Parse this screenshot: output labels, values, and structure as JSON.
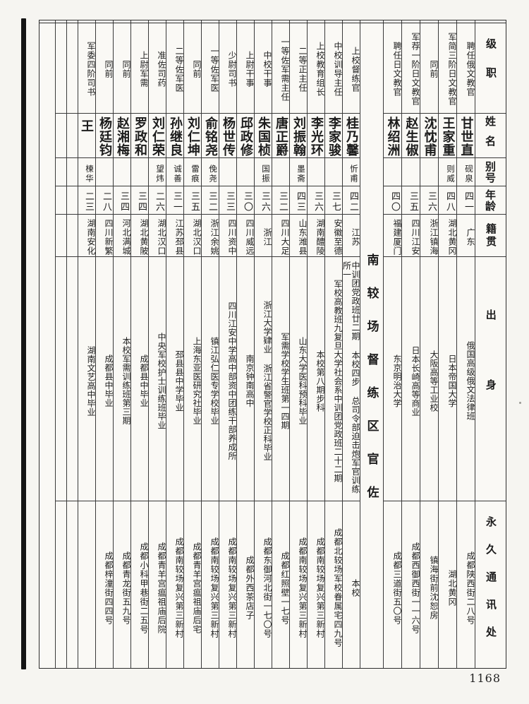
{
  "page": {
    "number": "1168",
    "title": "南较场督练区官佐"
  },
  "headers": {
    "rank": "级职",
    "name": "姓名",
    "hao": "别号",
    "age": "年龄",
    "native": "籍贯",
    "origin": "出身",
    "address": "永久通讯处"
  },
  "right_section": [
    {
      "rank": "聘任俄文教官",
      "name": "甘世直",
      "hao": "砚泉",
      "age": "四一",
      "native": "广东",
      "origin": "俄国高级俄文法律班",
      "address": "成都陕西街二八号"
    },
    {
      "rank": "军简三阶日文教官",
      "name": "王家重",
      "hao": "则威",
      "age": "四八",
      "native": "湖北黄冈",
      "origin": "日本帝国大学",
      "address": "湖北黄冈"
    },
    {
      "rank": "同前",
      "name": "沈忱甫",
      "hao": "",
      "age": "三六",
      "native": "浙江镇海",
      "origin": "大阪高等工业校",
      "address": "镇海街前沈恕房"
    },
    {
      "rank": "军荐一阶日文教官",
      "name": "赵生俶",
      "hao": "",
      "age": "三五",
      "native": "四川江安",
      "origin": "日本长崎高等商业",
      "address": "成都西御西街一一六号"
    },
    {
      "rank": "聘任日文教官",
      "name": "林绍洲",
      "hao": "",
      "age": "四〇",
      "native": "福建厦门",
      "origin": "东京明治大学",
      "address": "成都三道街五〇号"
    }
  ],
  "left_section": [
    {
      "rank": "上校督练官",
      "name": "桂乃馨",
      "hao": "忻甫",
      "age": "四二",
      "native": "江苏",
      "origin": "中训团党政班廿二期 本校四步 总司令部迫击炮军官训练所一",
      "address": "本校"
    },
    {
      "rank": "中校训导主任",
      "name": "李家骏",
      "hao": "",
      "age": "三七",
      "native": "安徽至德",
      "origin": "军校高教班九复旦大学社会系中训团党政班二十二期",
      "address": "成都北较场军校眷属宅四九号"
    },
    {
      "rank": "上校教育组长",
      "name": "李光环",
      "hao": "",
      "age": "三六",
      "native": "湖南醴陵",
      "origin": "本校第八期步科",
      "address": "成都南较场复兴第三新村"
    },
    {
      "rank": "二等正主任",
      "name": "刘振翰",
      "hao": "墨斋",
      "age": "四三",
      "native": "山东潍县",
      "origin": "山东大学医科预科毕业",
      "address": "成都南较场复兴第三新村"
    },
    {
      "rank": "一等佐军需主任",
      "name": "唐正爵",
      "hao": "",
      "age": "三二",
      "native": "四川大足",
      "origin": "军需学校学生班第一四期",
      "address": "成都红照壁一七号"
    },
    {
      "rank": "中校干事",
      "name": "朱国桢",
      "hao": "国振",
      "age": "三六",
      "native": "浙江",
      "origin": "浙江大学肄业 浙江省警官学校正科毕业",
      "address": "成都东御河北街一七〇号"
    },
    {
      "rank": "上尉干事",
      "name": "邱政修",
      "hao": "",
      "age": "三〇",
      "native": "四川威远",
      "origin": "南京钟南高中",
      "address": "成都外西茶店子"
    },
    {
      "rank": "少尉司书",
      "name": "杨世传",
      "hao": "",
      "age": "三三",
      "native": "四川资中",
      "origin": "四川江安中学高中部资中团练干部养成所",
      "address": "成都南较场复兴第三新村"
    },
    {
      "rank": "一等佐军医",
      "name": "俞铭尧",
      "hao": "俛尧",
      "age": "三二",
      "native": "浙江余姚",
      "origin": "镇江弘仁医专学校毕业",
      "address": "成都南较场复兴第三新村"
    },
    {
      "rank": "同前",
      "name": "刘仁坤",
      "hao": "雷痕",
      "age": "三五",
      "native": "湖北汉口",
      "origin": "上海东亚医研究社毕业",
      "address": "成都青羊宫瘟祖庙后宅"
    },
    {
      "rank": "二等佐军医",
      "name": "孙继良",
      "hao": "诚善",
      "age": "三一",
      "native": "江苏邳县",
      "origin": "邳县县中学毕业",
      "address": "成都南较场复兴第三新村"
    },
    {
      "rank": "准佐司药",
      "name": "刘仁荣",
      "hao": "望炜",
      "age": "二六",
      "native": "湖北汉口",
      "origin": "中央军校护士训练班毕业",
      "address": "成都青羊宫瘟祖庙后院"
    },
    {
      "rank": "上尉军需",
      "name": "罗政和",
      "hao": "",
      "age": "三四",
      "native": "湖北黄陂",
      "origin": "成都县中毕业",
      "address": "成都小科甲巷街二五号"
    },
    {
      "rank": "同前",
      "name": "赵湘梅",
      "hao": "",
      "age": "三四",
      "native": "河北满城",
      "origin": "本校军需训练班第三期",
      "address": "成都青龙街五九号"
    },
    {
      "rank": "同前",
      "name": "杨廷钧",
      "hao": "",
      "age": "二八",
      "native": "四川新繁",
      "origin": "成都县中毕业",
      "address": "成都梓潼街四四号"
    },
    {
      "rank": "军委四阶司书",
      "name": "王继",
      "hao": "楝华",
      "age": "二三",
      "native": "湖南安化",
      "origin": "湖南文艺高中毕业",
      "address": ""
    }
  ],
  "empty_columns": 2
}
